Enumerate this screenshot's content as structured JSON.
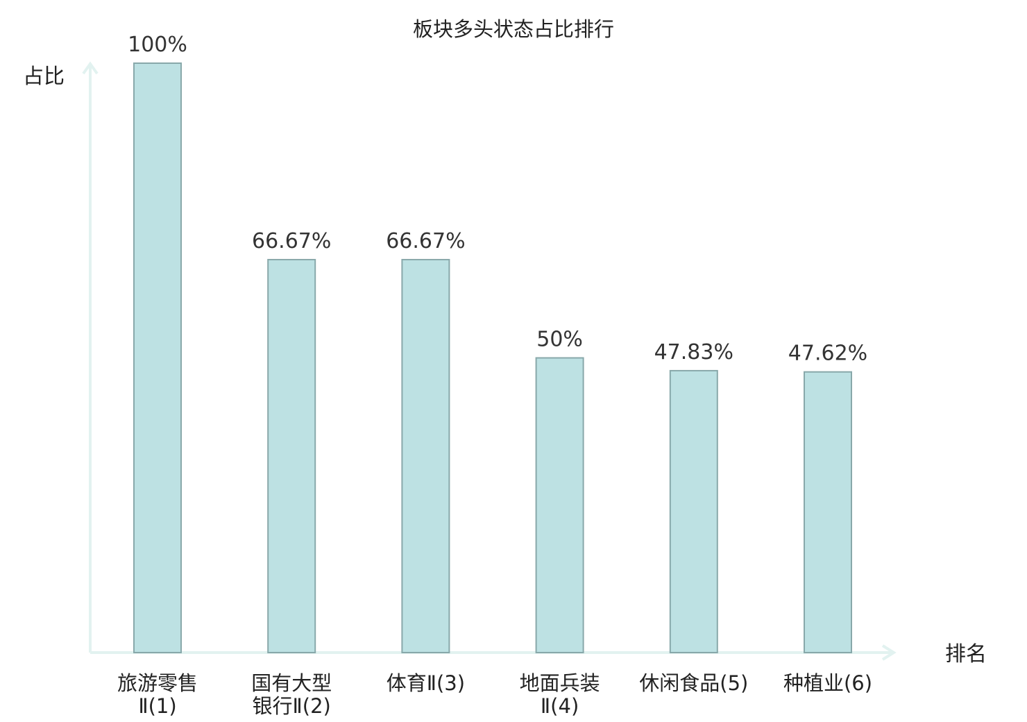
{
  "chart_data": {
    "type": "bar",
    "title": "板块多头状态占比排行",
    "ylabel": "占比",
    "xlabel": "排名",
    "ylim": [
      0,
      100
    ],
    "categories": [
      {
        "lines": [
          "旅游零售",
          "Ⅱ(1)"
        ],
        "highlight": false
      },
      {
        "lines": [
          "国有大型",
          "银行Ⅱ(2)"
        ],
        "highlight": false
      },
      {
        "lines": [
          "体育Ⅱ(3)"
        ],
        "highlight": false
      },
      {
        "lines": [
          "地面兵装",
          "Ⅱ(4)"
        ],
        "highlight": false
      },
      {
        "lines": [
          "休闲食品(5)"
        ],
        "highlight": false
      },
      {
        "lines": [
          "种植业(6)"
        ],
        "highlight": true
      }
    ],
    "values": [
      100,
      66.67,
      66.67,
      50,
      47.83,
      47.62
    ],
    "value_labels": [
      "100%",
      "66.67%",
      "66.67%",
      "50%",
      "47.83%",
      "47.62%"
    ],
    "grid": false,
    "legend": "none",
    "colors": {
      "bar_fill": "#bde1e3",
      "bar_stroke": "#88a8aa",
      "axis": "#e2f2f0",
      "highlight_text": "#e00000",
      "text": "#222222"
    }
  }
}
